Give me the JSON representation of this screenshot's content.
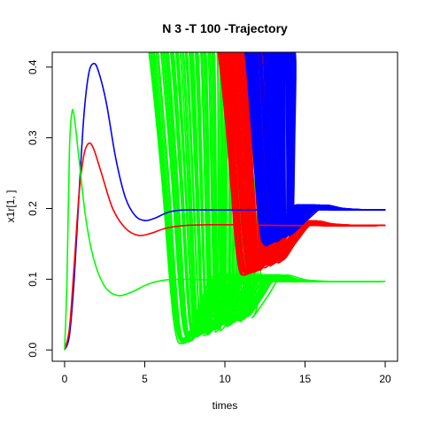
{
  "chart_data": {
    "type": "line",
    "title": "N 3 -T 100 -Trajectory",
    "xlabel": "times",
    "ylabel": "x1r[1, ]",
    "xlim": [
      0,
      20
    ],
    "ylim": [
      0,
      0.4
    ],
    "xticks": [
      0,
      5,
      10,
      15,
      20
    ],
    "yticks": [
      0.0,
      0.1,
      0.2,
      0.3,
      0.4
    ],
    "xtick_labels": [
      "0",
      "5",
      "10",
      "15",
      "20"
    ],
    "ytick_labels": [
      "0.0",
      "0.1",
      "0.2",
      "0.3",
      "0.4"
    ],
    "grid": false,
    "legend": "none",
    "series_colors": {
      "blue": "#0000ff",
      "red": "#ff0000",
      "green": "#00ff00"
    },
    "bundle_count_per_color": 100,
    "series": [
      {
        "color": "blue",
        "points": [
          [
            0,
            0
          ],
          [
            0.3,
            0.02
          ],
          [
            0.6,
            0.1
          ],
          [
            0.9,
            0.22
          ],
          [
            1.2,
            0.33
          ],
          [
            1.5,
            0.39
          ],
          [
            1.8,
            0.405
          ],
          [
            2.1,
            0.395
          ],
          [
            2.6,
            0.35
          ],
          [
            3.2,
            0.27
          ],
          [
            3.8,
            0.215
          ],
          [
            4.4,
            0.19
          ],
          [
            5,
            0.183
          ],
          [
            5.6,
            0.186
          ],
          [
            6.5,
            0.195
          ],
          [
            7.5,
            0.198
          ],
          [
            9,
            0.198
          ],
          [
            11,
            0.198
          ],
          [
            13,
            0.198
          ],
          [
            15,
            0.198
          ],
          [
            17,
            0.198
          ],
          [
            20,
            0.198
          ]
        ]
      },
      {
        "color": "red",
        "points": [
          [
            0,
            0
          ],
          [
            0.3,
            0.03
          ],
          [
            0.6,
            0.12
          ],
          [
            0.9,
            0.22
          ],
          [
            1.2,
            0.275
          ],
          [
            1.5,
            0.292
          ],
          [
            1.8,
            0.285
          ],
          [
            2.3,
            0.25
          ],
          [
            3,
            0.2
          ],
          [
            3.8,
            0.172
          ],
          [
            4.6,
            0.162
          ],
          [
            5.4,
            0.165
          ],
          [
            6.3,
            0.172
          ],
          [
            7.5,
            0.176
          ],
          [
            9,
            0.177
          ],
          [
            11,
            0.177
          ],
          [
            14,
            0.176
          ],
          [
            20,
            0.176
          ]
        ]
      },
      {
        "color": "green",
        "points": [
          [
            0,
            0
          ],
          [
            0.15,
            0.1
          ],
          [
            0.3,
            0.28
          ],
          [
            0.45,
            0.335
          ],
          [
            0.6,
            0.33
          ],
          [
            0.9,
            0.27
          ],
          [
            1.3,
            0.19
          ],
          [
            1.8,
            0.13
          ],
          [
            2.5,
            0.09
          ],
          [
            3.3,
            0.077
          ],
          [
            4.2,
            0.082
          ],
          [
            5.2,
            0.093
          ],
          [
            6.3,
            0.099
          ],
          [
            7.5,
            0.1
          ],
          [
            9,
            0.099
          ],
          [
            11,
            0.098
          ],
          [
            14,
            0.097
          ],
          [
            20,
            0.097
          ]
        ]
      }
    ],
    "bundles": [
      {
        "color": "green",
        "rise_start": 5.3,
        "rise_end": 13.0,
        "min_start": 7.4,
        "min_end": 11.6,
        "min_value_start": 0.013,
        "min_value_end": 0.05,
        "settle_value": 0.097,
        "overshoot": 0.105,
        "peak_value": 0.42
      },
      {
        "color": "red",
        "rise_start": 9.6,
        "rise_end": 13.3,
        "min_start": 11.2,
        "min_end": 13.6,
        "min_value_start": 0.11,
        "min_value_end": 0.13,
        "settle_value": 0.176,
        "overshoot": 0.181,
        "peak_value": 0.42
      },
      {
        "color": "blue",
        "rise_start": 11.3,
        "rise_end": 14.4,
        "min_start": 12.5,
        "min_end": 14.2,
        "min_value_start": 0.15,
        "min_value_end": 0.17,
        "settle_value": 0.198,
        "overshoot": 0.204,
        "peak_value": 0.42
      }
    ]
  }
}
